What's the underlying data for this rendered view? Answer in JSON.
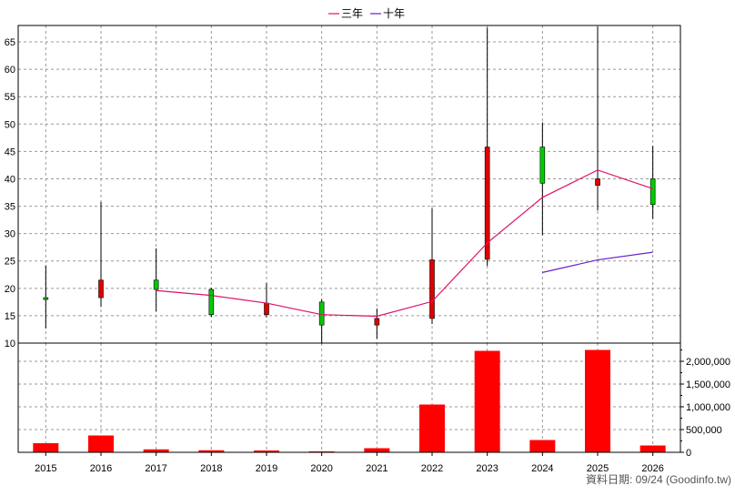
{
  "legend": {
    "items": [
      {
        "label": "三年",
        "color": "#e0106a"
      },
      {
        "label": "十年",
        "color": "#6a20c8"
      }
    ]
  },
  "footer": {
    "data_date": "資料日期: 09/24  (Goodinfo.tw)"
  },
  "chart_data": [
    {
      "type": "candlestick",
      "x": [
        "2015",
        "2016",
        "2017",
        "2018",
        "2019",
        "2020",
        "2021",
        "2022",
        "2023",
        "2024",
        "2025",
        "2026"
      ],
      "ylim": [
        10,
        68
      ],
      "yticks": [
        10,
        15,
        20,
        25,
        30,
        35,
        40,
        45,
        50,
        55,
        60,
        65
      ],
      "grid": true,
      "candles": [
        {
          "x": "2015",
          "open": 18.0,
          "close": 18.3,
          "high": 24.2,
          "low": 12.7,
          "color": "#00cc00"
        },
        {
          "x": "2016",
          "open": 21.5,
          "close": 18.3,
          "high": 35.8,
          "low": 16.6,
          "color": "#e00000"
        },
        {
          "x": "2017",
          "open": 19.8,
          "close": 21.5,
          "high": 27.3,
          "low": 15.8,
          "color": "#00cc00"
        },
        {
          "x": "2018",
          "open": 15.2,
          "close": 19.8,
          "high": 20.1,
          "low": 14.8,
          "color": "#00cc00"
        },
        {
          "x": "2019",
          "open": 17.3,
          "close": 15.2,
          "high": 21.0,
          "low": 14.7,
          "color": "#e00000"
        },
        {
          "x": "2020",
          "open": 13.3,
          "close": 17.5,
          "high": 18.0,
          "low": 9.8,
          "color": "#00cc00"
        },
        {
          "x": "2021",
          "open": 14.5,
          "close": 13.3,
          "high": 16.3,
          "low": 10.8,
          "color": "#e00000"
        },
        {
          "x": "2022",
          "open": 25.2,
          "close": 14.5,
          "high": 34.6,
          "low": 13.5,
          "color": "#e00000"
        },
        {
          "x": "2023",
          "open": 45.8,
          "close": 25.3,
          "high": 67.6,
          "low": 24.1,
          "color": "#e00000"
        },
        {
          "x": "2024",
          "open": 39.2,
          "close": 45.8,
          "high": 50.3,
          "low": 29.7,
          "color": "#00cc00"
        },
        {
          "x": "2025",
          "open": 40.0,
          "close": 38.8,
          "high": 67.8,
          "low": 34.2,
          "color": "#e00000"
        },
        {
          "x": "2026",
          "open": 35.3,
          "close": 40.0,
          "high": 46.0,
          "low": 32.7,
          "color": "#00cc00"
        }
      ],
      "series": [
        {
          "name": "三年",
          "color": "#e0106a",
          "x": [
            "2017",
            "2018",
            "2019",
            "2020",
            "2021",
            "2022",
            "2023",
            "2024",
            "2025",
            "2026"
          ],
          "values": [
            19.6,
            18.7,
            17.3,
            15.2,
            14.9,
            17.6,
            28.3,
            36.6,
            41.6,
            38.2
          ]
        },
        {
          "name": "十年",
          "color": "#6a20c8",
          "x": [
            "2024",
            "2025",
            "2026"
          ],
          "values": [
            22.9,
            25.2,
            26.6
          ]
        }
      ]
    },
    {
      "type": "bar",
      "categories": [
        "2015",
        "2016",
        "2017",
        "2018",
        "2019",
        "2020",
        "2021",
        "2022",
        "2023",
        "2024",
        "2025",
        "2026"
      ],
      "values": [
        200000,
        370000,
        65000,
        45000,
        40000,
        20000,
        90000,
        1050000,
        2230000,
        270000,
        2250000,
        150000
      ],
      "color": "#ff0000",
      "ylim": [
        0,
        2400000
      ],
      "yticks": [
        0,
        500000,
        1000000,
        1500000,
        2000000
      ],
      "ytick_labels": [
        "0",
        "500,000",
        "1,000,000",
        "1,500,000",
        "2,000,000"
      ],
      "grid": true
    }
  ]
}
